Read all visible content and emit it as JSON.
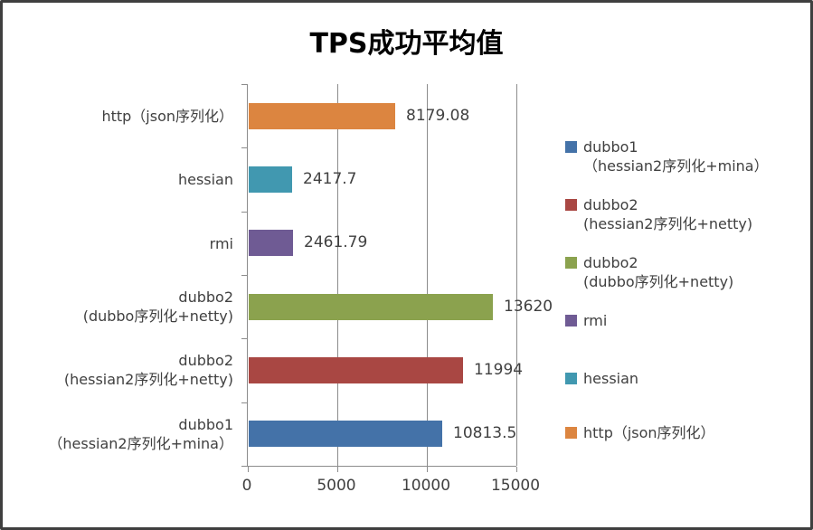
{
  "title": "TPS成功平均值",
  "frame": {
    "background": "#FFFFFF",
    "border_color": "#3F3F3F",
    "grid_color": "#8C8C8C",
    "text_color": "#404040"
  },
  "chart_data": {
    "type": "bar",
    "orientation": "horizontal",
    "title": "TPS成功平均值",
    "xlabel": "",
    "ylabel": "",
    "xlim": [
      0,
      15000
    ],
    "x_ticks": [
      0,
      5000,
      10000,
      15000
    ],
    "grid": true,
    "legend_position": "right",
    "bars": [
      {
        "name": "http-json",
        "category_lines": [
          "http（json序列化）"
        ],
        "value": 8179.08,
        "value_label": "8179.08",
        "color": "#DC8540"
      },
      {
        "name": "hessian",
        "category_lines": [
          "hessian"
        ],
        "value": 2417.7,
        "value_label": "2417.7",
        "color": "#4198B0"
      },
      {
        "name": "rmi",
        "category_lines": [
          "rmi"
        ],
        "value": 2461.79,
        "value_label": "2461.79",
        "color": "#6F5B94"
      },
      {
        "name": "dubbo2-dubbo-netty",
        "category_lines": [
          "dubbo2",
          "(dubbo序列化+netty)"
        ],
        "value": 13620,
        "value_label": "13620",
        "color": "#8BA24E"
      },
      {
        "name": "dubbo2-hessian2-netty",
        "category_lines": [
          "dubbo2",
          "(hessian2序列化+netty)"
        ],
        "value": 11994,
        "value_label": "11994",
        "color": "#A94743"
      },
      {
        "name": "dubbo1-hessian2-mina",
        "category_lines": [
          "dubbo1",
          "（hessian2序列化+mina）"
        ],
        "value": 10813.5,
        "value_label": "10813.5",
        "color": "#4472A8"
      }
    ],
    "legend": [
      {
        "name": "dubbo1-hessian2-mina",
        "lines": [
          "dubbo1",
          "（hessian2序列化+mina）"
        ],
        "color": "#4472A8"
      },
      {
        "name": "dubbo2-hessian2-netty",
        "lines": [
          "dubbo2",
          "(hessian2序列化+netty)"
        ],
        "color": "#A94743"
      },
      {
        "name": "dubbo2-dubbo-netty",
        "lines": [
          "dubbo2",
          "(dubbo序列化+netty)"
        ],
        "color": "#8BA24E"
      },
      {
        "name": "rmi",
        "lines": [
          "rmi"
        ],
        "color": "#6F5B94"
      },
      {
        "name": "hessian",
        "lines": [
          "hessian"
        ],
        "color": "#4198B0"
      },
      {
        "name": "http-json",
        "lines": [
          "http（json序列化）"
        ],
        "color": "#DC8540"
      }
    ]
  }
}
